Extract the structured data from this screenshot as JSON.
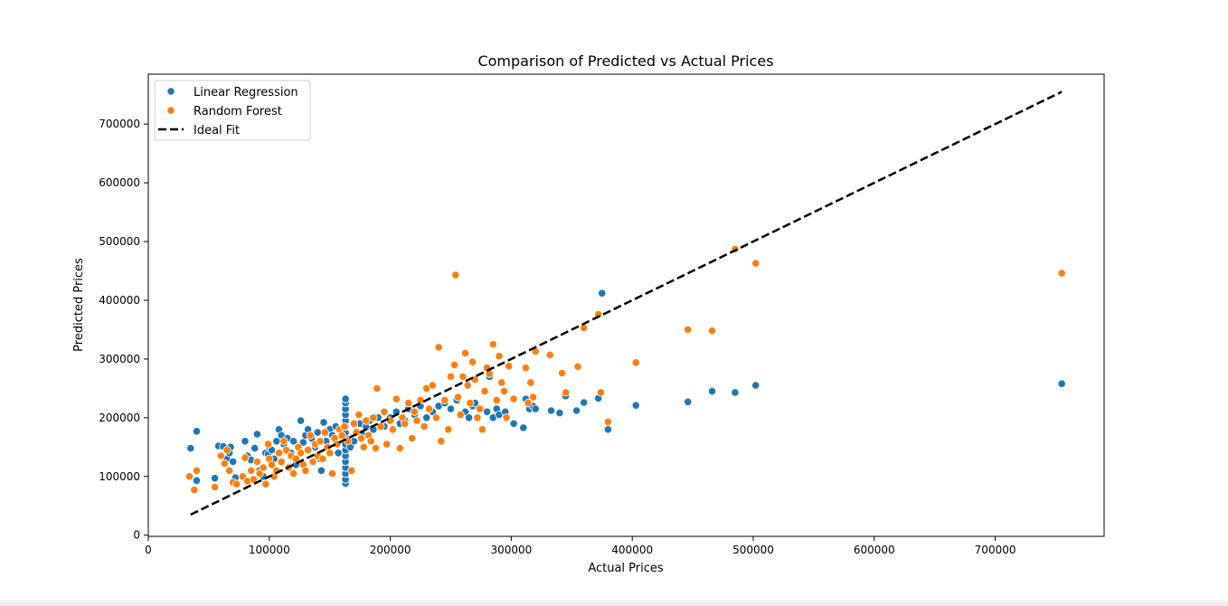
{
  "chart_data": {
    "type": "scatter",
    "title": "Comparison of Predicted vs Actual Prices",
    "xlabel": "Actual Prices",
    "ylabel": "Predicted Prices",
    "xlim": [
      0,
      790000
    ],
    "ylim": [
      -2000,
      785000
    ],
    "xticks": [
      0,
      100000,
      200000,
      300000,
      400000,
      500000,
      600000,
      700000
    ],
    "yticks": [
      0,
      100000,
      200000,
      300000,
      400000,
      500000,
      600000,
      700000
    ],
    "grid": false,
    "legend_position": "top-left",
    "series": [
      {
        "name": "Linear Regression",
        "kind": "scatter",
        "color": "#1f77b4",
        "points": [
          [
            35000,
            148000
          ],
          [
            40000,
            93000
          ],
          [
            40000,
            177000
          ],
          [
            55000,
            97000
          ],
          [
            58000,
            152000
          ],
          [
            62000,
            151000
          ],
          [
            65000,
            130000
          ],
          [
            67000,
            140000
          ],
          [
            68000,
            150000
          ],
          [
            70000,
            125000
          ],
          [
            72000,
            98000
          ],
          [
            80000,
            160000
          ],
          [
            82000,
            135000
          ],
          [
            85000,
            128000
          ],
          [
            88000,
            148000
          ],
          [
            90000,
            172000
          ],
          [
            92000,
            110000
          ],
          [
            95000,
            100000
          ],
          [
            97000,
            140000
          ],
          [
            99000,
            138000
          ],
          [
            100000,
            150000
          ],
          [
            102000,
            145000
          ],
          [
            104000,
            130000
          ],
          [
            106000,
            160000
          ],
          [
            108000,
            180000
          ],
          [
            110000,
            170000
          ],
          [
            112000,
            155000
          ],
          [
            115000,
            165000
          ],
          [
            118000,
            140000
          ],
          [
            120000,
            160000
          ],
          [
            122000,
            120000
          ],
          [
            124000,
            150000
          ],
          [
            126000,
            195000
          ],
          [
            128000,
            158000
          ],
          [
            130000,
            170000
          ],
          [
            132000,
            180000
          ],
          [
            135000,
            165000
          ],
          [
            138000,
            150000
          ],
          [
            140000,
            175000
          ],
          [
            142000,
            130000
          ],
          [
            143000,
            110000
          ],
          [
            145000,
            192000
          ],
          [
            147000,
            160000
          ],
          [
            150000,
            180000
          ],
          [
            152000,
            170000
          ],
          [
            155000,
            185000
          ],
          [
            157000,
            140000
          ],
          [
            160000,
            175000
          ],
          [
            163000,
            88000
          ],
          [
            163000,
            95000
          ],
          [
            163000,
            105000
          ],
          [
            163000,
            115000
          ],
          [
            163000,
            125000
          ],
          [
            163000,
            135000
          ],
          [
            163000,
            145000
          ],
          [
            163000,
            155000
          ],
          [
            163000,
            165000
          ],
          [
            163000,
            175000
          ],
          [
            163000,
            185000
          ],
          [
            163000,
            195000
          ],
          [
            163000,
            205000
          ],
          [
            163000,
            215000
          ],
          [
            163000,
            225000
          ],
          [
            163000,
            232000
          ],
          [
            167000,
            150000
          ],
          [
            170000,
            160000
          ],
          [
            172000,
            175000
          ],
          [
            175000,
            190000
          ],
          [
            178000,
            170000
          ],
          [
            180000,
            185000
          ],
          [
            183000,
            195000
          ],
          [
            186000,
            180000
          ],
          [
            190000,
            200000
          ],
          [
            195000,
            185000
          ],
          [
            200000,
            200000
          ],
          [
            205000,
            210000
          ],
          [
            208000,
            190000
          ],
          [
            212000,
            195000
          ],
          [
            215000,
            215000
          ],
          [
            220000,
            205000
          ],
          [
            225000,
            220000
          ],
          [
            230000,
            200000
          ],
          [
            235000,
            210000
          ],
          [
            240000,
            220000
          ],
          [
            245000,
            225000
          ],
          [
            250000,
            215000
          ],
          [
            255000,
            230000
          ],
          [
            258000,
            205000
          ],
          [
            262000,
            210000
          ],
          [
            265000,
            200000
          ],
          [
            268000,
            220000
          ],
          [
            270000,
            225000
          ],
          [
            275000,
            215000
          ],
          [
            280000,
            210000
          ],
          [
            282000,
            270000
          ],
          [
            285000,
            200000
          ],
          [
            288000,
            215000
          ],
          [
            290000,
            205000
          ],
          [
            295000,
            210000
          ],
          [
            302000,
            190000
          ],
          [
            310000,
            183000
          ],
          [
            312000,
            232000
          ],
          [
            315000,
            215000
          ],
          [
            318000,
            220000
          ],
          [
            320000,
            215000
          ],
          [
            333000,
            212000
          ],
          [
            340000,
            208000
          ],
          [
            345000,
            237000
          ],
          [
            354000,
            212000
          ],
          [
            360000,
            226000
          ],
          [
            372000,
            233000
          ],
          [
            375000,
            412000
          ],
          [
            380000,
            180000
          ],
          [
            403000,
            221000
          ],
          [
            446000,
            227000
          ],
          [
            466000,
            245000
          ],
          [
            485000,
            243000
          ],
          [
            502000,
            255000
          ],
          [
            755000,
            258000
          ]
        ]
      },
      {
        "name": "Random Forest",
        "kind": "scatter",
        "color": "#ff7f0e",
        "points": [
          [
            34000,
            100000
          ],
          [
            38000,
            77000
          ],
          [
            40000,
            110000
          ],
          [
            55000,
            82000
          ],
          [
            60000,
            135000
          ],
          [
            63000,
            122000
          ],
          [
            65000,
            145000
          ],
          [
            67000,
            110000
          ],
          [
            70000,
            90000
          ],
          [
            73000,
            87000
          ],
          [
            78000,
            100000
          ],
          [
            80000,
            132000
          ],
          [
            82000,
            92000
          ],
          [
            85000,
            110000
          ],
          [
            87000,
            95000
          ],
          [
            90000,
            125000
          ],
          [
            92000,
            105000
          ],
          [
            95000,
            115000
          ],
          [
            97000,
            87000
          ],
          [
            99000,
            155000
          ],
          [
            100000,
            130000
          ],
          [
            102000,
            120000
          ],
          [
            104000,
            100000
          ],
          [
            106000,
            110000
          ],
          [
            108000,
            140000
          ],
          [
            110000,
            125000
          ],
          [
            112000,
            160000
          ],
          [
            114000,
            145000
          ],
          [
            116000,
            115000
          ],
          [
            118000,
            135000
          ],
          [
            120000,
            105000
          ],
          [
            122000,
            130000
          ],
          [
            124000,
            150000
          ],
          [
            126000,
            140000
          ],
          [
            128000,
            120000
          ],
          [
            130000,
            110000
          ],
          [
            132000,
            145000
          ],
          [
            134000,
            170000
          ],
          [
            136000,
            125000
          ],
          [
            138000,
            155000
          ],
          [
            140000,
            135000
          ],
          [
            142000,
            160000
          ],
          [
            144000,
            130000
          ],
          [
            146000,
            175000
          ],
          [
            148000,
            150000
          ],
          [
            150000,
            140000
          ],
          [
            152000,
            105000
          ],
          [
            154000,
            165000
          ],
          [
            156000,
            155000
          ],
          [
            158000,
            180000
          ],
          [
            160000,
            170000
          ],
          [
            162000,
            185000
          ],
          [
            165000,
            160000
          ],
          [
            168000,
            110000
          ],
          [
            170000,
            190000
          ],
          [
            172000,
            175000
          ],
          [
            174000,
            205000
          ],
          [
            176000,
            165000
          ],
          [
            178000,
            150000
          ],
          [
            180000,
            195000
          ],
          [
            182000,
            170000
          ],
          [
            184000,
            160000
          ],
          [
            186000,
            200000
          ],
          [
            188000,
            148000
          ],
          [
            189000,
            250000
          ],
          [
            192000,
            185000
          ],
          [
            195000,
            210000
          ],
          [
            197000,
            155000
          ],
          [
            200000,
            195000
          ],
          [
            202000,
            180000
          ],
          [
            205000,
            232000
          ],
          [
            208000,
            148000
          ],
          [
            210000,
            200000
          ],
          [
            212000,
            190000
          ],
          [
            215000,
            225000
          ],
          [
            218000,
            165000
          ],
          [
            220000,
            210000
          ],
          [
            222000,
            195000
          ],
          [
            225000,
            230000
          ],
          [
            228000,
            185000
          ],
          [
            230000,
            250000
          ],
          [
            232000,
            215000
          ],
          [
            235000,
            255000
          ],
          [
            238000,
            200000
          ],
          [
            240000,
            320000
          ],
          [
            242000,
            160000
          ],
          [
            245000,
            230000
          ],
          [
            248000,
            180000
          ],
          [
            250000,
            270000
          ],
          [
            253000,
            290000
          ],
          [
            254000,
            443000
          ],
          [
            256000,
            235000
          ],
          [
            258000,
            205000
          ],
          [
            260000,
            270000
          ],
          [
            262000,
            310000
          ],
          [
            264000,
            255000
          ],
          [
            266000,
            225000
          ],
          [
            268000,
            295000
          ],
          [
            270000,
            265000
          ],
          [
            272000,
            200000
          ],
          [
            274000,
            215000
          ],
          [
            276000,
            180000
          ],
          [
            278000,
            245000
          ],
          [
            280000,
            285000
          ],
          [
            282000,
            275000
          ],
          [
            285000,
            325000
          ],
          [
            288000,
            230000
          ],
          [
            290000,
            305000
          ],
          [
            292000,
            260000
          ],
          [
            294000,
            245000
          ],
          [
            296000,
            200000
          ],
          [
            298000,
            288000
          ],
          [
            302000,
            232000
          ],
          [
            312000,
            285000
          ],
          [
            314000,
            225000
          ],
          [
            316000,
            260000
          ],
          [
            318000,
            235000
          ],
          [
            320000,
            313000
          ],
          [
            332000,
            307000
          ],
          [
            342000,
            276000
          ],
          [
            345000,
            243000
          ],
          [
            355000,
            287000
          ],
          [
            360000,
            353000
          ],
          [
            372000,
            376000
          ],
          [
            374000,
            243000
          ],
          [
            380000,
            193000
          ],
          [
            403000,
            294000
          ],
          [
            446000,
            350000
          ],
          [
            466000,
            348000
          ],
          [
            485000,
            487000
          ],
          [
            502000,
            463000
          ],
          [
            755000,
            446000
          ]
        ]
      },
      {
        "name": "Ideal Fit",
        "kind": "line",
        "style": "dashed",
        "color": "#000000",
        "x": [
          35000,
          755000
        ],
        "y": [
          35000,
          755000
        ]
      }
    ]
  }
}
